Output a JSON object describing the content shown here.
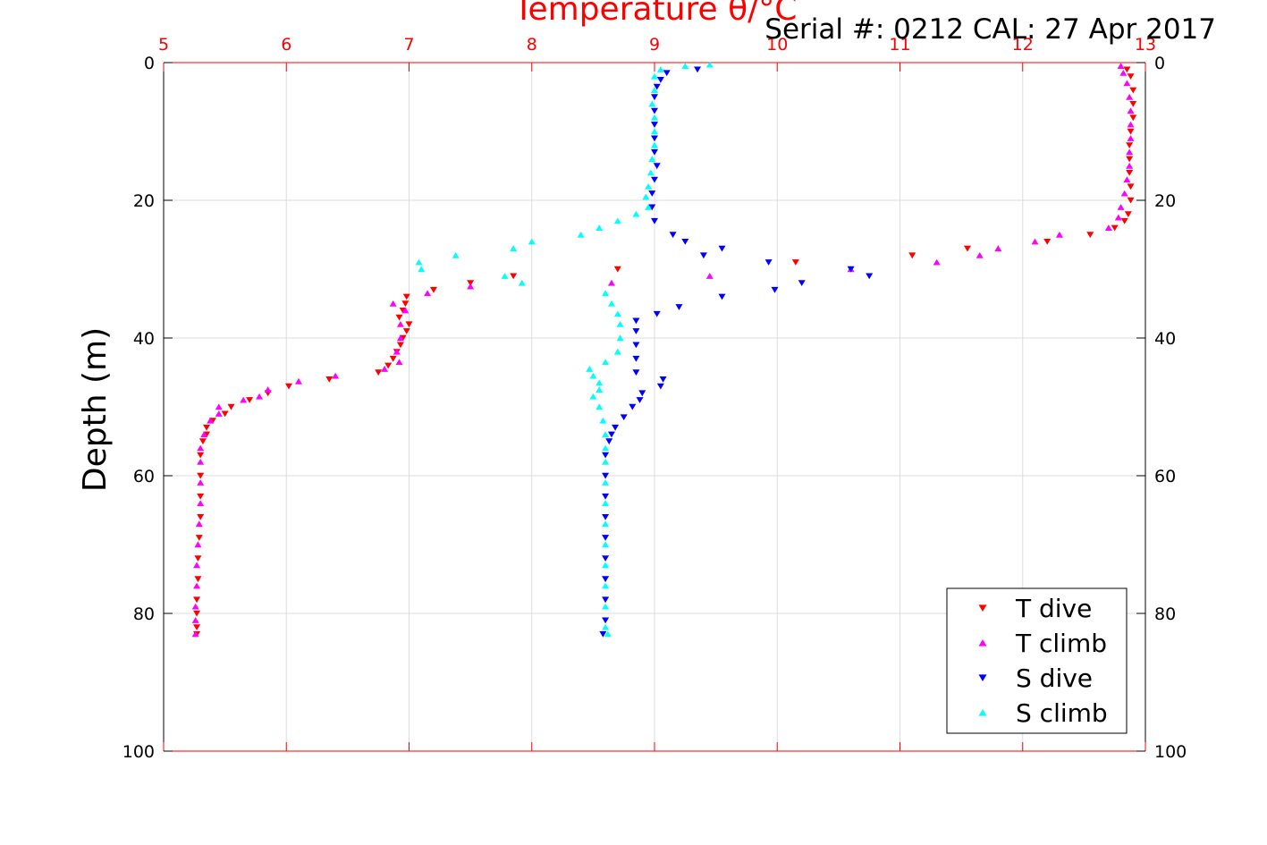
{
  "chart_data": {
    "type": "scatter",
    "title": "Temperature θ/°C",
    "annotation": "Serial #: 0212  CAL: 27 Apr 2017",
    "ylabel": "Depth (m)",
    "xlabel": "",
    "xlim": [
      5,
      13
    ],
    "ylim": [
      0,
      100
    ],
    "y_reversed": true,
    "grid": true,
    "legend_position": "bottom-right",
    "x_ticks": [
      "5",
      "6",
      "7",
      "8",
      "9",
      "10",
      "11",
      "12",
      "13"
    ],
    "y_ticks_left": [
      "0",
      "20",
      "40",
      "60",
      "80",
      "100"
    ],
    "y_ticks_right": [
      "0",
      "20",
      "40",
      "60",
      "80",
      "100"
    ],
    "colors": {
      "title": "#ff0000",
      "x_axis": "#ff0000",
      "grid": "#dddddd",
      "t_dive": "#ff0000",
      "t_climb": "#ff00ff",
      "s_dive": "#0000ff",
      "s_climb": "#00ffff"
    },
    "series": [
      {
        "name": "T dive",
        "marker": "triangle-down",
        "color": "#ff0000",
        "points": [
          [
            12.85,
            1
          ],
          [
            12.88,
            2
          ],
          [
            12.9,
            4
          ],
          [
            12.9,
            6
          ],
          [
            12.9,
            8
          ],
          [
            12.88,
            10
          ],
          [
            12.87,
            12
          ],
          [
            12.87,
            14
          ],
          [
            12.87,
            16
          ],
          [
            12.88,
            18
          ],
          [
            12.88,
            20
          ],
          [
            12.86,
            22
          ],
          [
            12.83,
            23
          ],
          [
            12.75,
            24
          ],
          [
            12.55,
            25
          ],
          [
            12.2,
            26
          ],
          [
            11.55,
            27
          ],
          [
            11.1,
            28
          ],
          [
            10.15,
            29
          ],
          [
            8.7,
            30
          ],
          [
            7.85,
            31
          ],
          [
            7.5,
            32
          ],
          [
            7.2,
            33
          ],
          [
            6.98,
            34
          ],
          [
            6.97,
            35
          ],
          [
            6.95,
            36
          ],
          [
            6.92,
            37
          ],
          [
            7.0,
            38
          ],
          [
            6.98,
            39
          ],
          [
            6.95,
            40
          ],
          [
            6.93,
            41
          ],
          [
            6.9,
            42
          ],
          [
            6.87,
            43
          ],
          [
            6.83,
            44
          ],
          [
            6.75,
            45
          ],
          [
            6.35,
            46
          ],
          [
            6.02,
            47
          ],
          [
            5.85,
            48
          ],
          [
            5.7,
            49
          ],
          [
            5.55,
            50
          ],
          [
            5.5,
            51
          ],
          [
            5.4,
            52
          ],
          [
            5.35,
            53
          ],
          [
            5.35,
            54
          ],
          [
            5.32,
            55
          ],
          [
            5.3,
            57
          ],
          [
            5.3,
            60
          ],
          [
            5.3,
            63
          ],
          [
            5.3,
            66
          ],
          [
            5.29,
            69
          ],
          [
            5.28,
            72
          ],
          [
            5.28,
            75
          ],
          [
            5.27,
            78
          ],
          [
            5.27,
            80
          ],
          [
            5.27,
            82
          ],
          [
            5.27,
            83
          ]
        ]
      },
      {
        "name": "T climb",
        "marker": "triangle-up",
        "color": "#ff00ff",
        "points": [
          [
            12.8,
            0.5
          ],
          [
            12.82,
            1.5
          ],
          [
            12.85,
            3
          ],
          [
            12.87,
            5
          ],
          [
            12.88,
            7
          ],
          [
            12.88,
            9
          ],
          [
            12.88,
            11
          ],
          [
            12.87,
            13
          ],
          [
            12.87,
            15
          ],
          [
            12.85,
            17
          ],
          [
            12.83,
            19
          ],
          [
            12.8,
            21
          ],
          [
            12.78,
            22.5
          ],
          [
            12.7,
            24
          ],
          [
            12.3,
            25
          ],
          [
            12.1,
            26
          ],
          [
            11.8,
            27
          ],
          [
            11.65,
            28
          ],
          [
            11.3,
            29
          ],
          [
            10.6,
            30
          ],
          [
            9.45,
            31
          ],
          [
            8.65,
            32
          ],
          [
            7.5,
            32.5
          ],
          [
            7.15,
            33.5
          ],
          [
            6.87,
            35
          ],
          [
            6.97,
            36
          ],
          [
            6.93,
            38
          ],
          [
            6.93,
            40
          ],
          [
            6.9,
            42
          ],
          [
            6.92,
            43.5
          ],
          [
            6.8,
            44.5
          ],
          [
            6.4,
            45.5
          ],
          [
            6.1,
            46.3
          ],
          [
            5.85,
            47.5
          ],
          [
            5.78,
            48.5
          ],
          [
            5.65,
            49
          ],
          [
            5.45,
            50
          ],
          [
            5.45,
            51
          ],
          [
            5.38,
            52
          ],
          [
            5.33,
            54
          ],
          [
            5.3,
            56
          ],
          [
            5.3,
            58
          ],
          [
            5.3,
            61
          ],
          [
            5.3,
            64
          ],
          [
            5.29,
            67
          ],
          [
            5.28,
            70
          ],
          [
            5.27,
            73
          ],
          [
            5.27,
            76
          ],
          [
            5.26,
            79
          ],
          [
            5.26,
            81
          ],
          [
            5.26,
            83
          ]
        ]
      },
      {
        "name": "S dive",
        "marker": "triangle-down",
        "color": "#0000ff",
        "points": [
          [
            9.35,
            1
          ],
          [
            9.1,
            1.5
          ],
          [
            9.05,
            2.5
          ],
          [
            9.02,
            3.5
          ],
          [
            9.0,
            5
          ],
          [
            9.0,
            7
          ],
          [
            9.0,
            9
          ],
          [
            9.0,
            11
          ],
          [
            9.0,
            13
          ],
          [
            9.02,
            15
          ],
          [
            9.0,
            17
          ],
          [
            8.98,
            19
          ],
          [
            8.98,
            21
          ],
          [
            9.0,
            23
          ],
          [
            9.15,
            25
          ],
          [
            9.25,
            26
          ],
          [
            9.55,
            27
          ],
          [
            9.4,
            28
          ],
          [
            9.93,
            29
          ],
          [
            10.6,
            30
          ],
          [
            10.75,
            31
          ],
          [
            10.2,
            32
          ],
          [
            9.98,
            33
          ],
          [
            9.55,
            34
          ],
          [
            9.2,
            35.5
          ],
          [
            9.02,
            36.5
          ],
          [
            8.85,
            37.5
          ],
          [
            8.85,
            39
          ],
          [
            8.85,
            41
          ],
          [
            8.85,
            43
          ],
          [
            8.85,
            45
          ],
          [
            9.07,
            46
          ],
          [
            9.05,
            47
          ],
          [
            8.9,
            48
          ],
          [
            8.88,
            49
          ],
          [
            8.82,
            50
          ],
          [
            8.75,
            51.5
          ],
          [
            8.68,
            53
          ],
          [
            8.65,
            54
          ],
          [
            8.63,
            55
          ],
          [
            8.6,
            57
          ],
          [
            8.6,
            60
          ],
          [
            8.6,
            63
          ],
          [
            8.6,
            66
          ],
          [
            8.6,
            69
          ],
          [
            8.6,
            72
          ],
          [
            8.6,
            75
          ],
          [
            8.6,
            78
          ],
          [
            8.6,
            81
          ],
          [
            8.58,
            83
          ]
        ]
      },
      {
        "name": "S climb",
        "marker": "triangle-up",
        "color": "#00ffff",
        "points": [
          [
            9.45,
            0.3
          ],
          [
            9.25,
            0.5
          ],
          [
            9.05,
            1
          ],
          [
            9.0,
            2
          ],
          [
            9.0,
            4
          ],
          [
            8.98,
            6
          ],
          [
            9.0,
            8
          ],
          [
            9.0,
            10
          ],
          [
            9.0,
            12
          ],
          [
            8.98,
            14
          ],
          [
            8.97,
            16
          ],
          [
            8.95,
            18
          ],
          [
            8.93,
            19.5
          ],
          [
            8.95,
            21
          ],
          [
            8.85,
            22
          ],
          [
            8.7,
            23
          ],
          [
            8.55,
            24
          ],
          [
            8.4,
            25
          ],
          [
            8.0,
            26
          ],
          [
            7.85,
            27
          ],
          [
            7.38,
            28
          ],
          [
            7.08,
            29
          ],
          [
            7.1,
            30
          ],
          [
            7.78,
            31
          ],
          [
            7.92,
            32
          ],
          [
            8.6,
            33.5
          ],
          [
            8.65,
            35
          ],
          [
            8.7,
            36.5
          ],
          [
            8.72,
            38
          ],
          [
            8.72,
            40
          ],
          [
            8.7,
            42
          ],
          [
            8.6,
            43.5
          ],
          [
            8.47,
            44.5
          ],
          [
            8.5,
            45.5
          ],
          [
            8.55,
            46.5
          ],
          [
            8.55,
            47.5
          ],
          [
            8.5,
            48.5
          ],
          [
            8.55,
            50
          ],
          [
            8.58,
            52
          ],
          [
            8.6,
            54
          ],
          [
            8.6,
            56
          ],
          [
            8.6,
            58
          ],
          [
            8.6,
            61
          ],
          [
            8.6,
            64
          ],
          [
            8.6,
            67
          ],
          [
            8.6,
            70
          ],
          [
            8.6,
            73
          ],
          [
            8.6,
            76
          ],
          [
            8.6,
            79
          ],
          [
            8.6,
            82
          ],
          [
            8.62,
            83
          ]
        ]
      }
    ]
  }
}
